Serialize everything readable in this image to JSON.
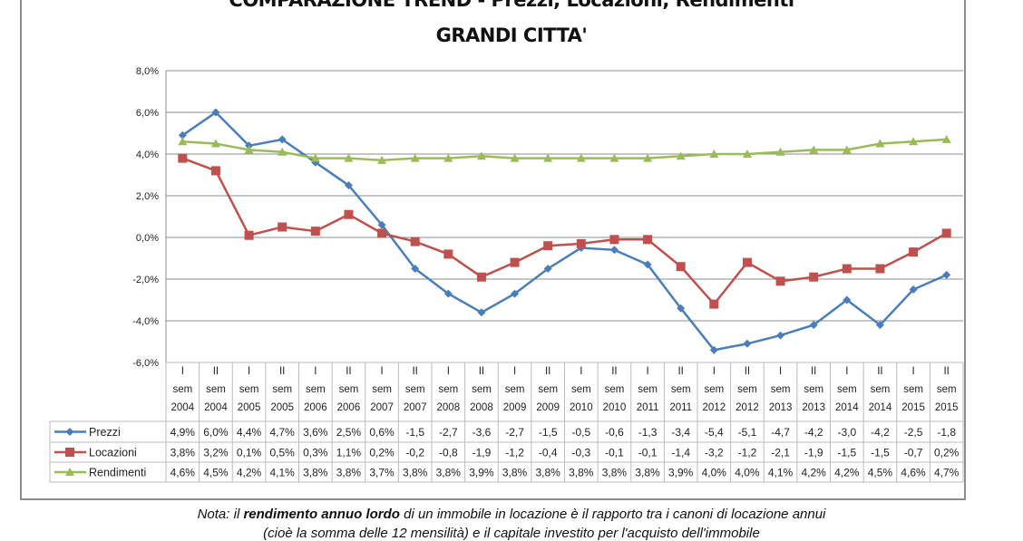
{
  "chart_data": {
    "type": "line",
    "title": "COMPARAZIONE TREND  - Prezzi, Locazioni, Rendimenti",
    "subtitle": "GRANDI CITTA'",
    "categories": [
      [
        "I",
        "sem",
        "2004"
      ],
      [
        "II",
        "sem",
        "2004"
      ],
      [
        "I",
        "sem",
        "2005"
      ],
      [
        "II",
        "sem",
        "2005"
      ],
      [
        "I",
        "sem",
        "2006"
      ],
      [
        "II",
        "sem",
        "2006"
      ],
      [
        "I",
        "sem",
        "2007"
      ],
      [
        "II",
        "sem",
        "2007"
      ],
      [
        "I",
        "sem",
        "2008"
      ],
      [
        "II",
        "sem",
        "2008"
      ],
      [
        "I",
        "sem",
        "2009"
      ],
      [
        "II",
        "sem",
        "2009"
      ],
      [
        "I",
        "sem",
        "2010"
      ],
      [
        "II",
        "sem",
        "2010"
      ],
      [
        "I",
        "sem",
        "2011"
      ],
      [
        "II",
        "sem",
        "2011"
      ],
      [
        "I",
        "sem",
        "2012"
      ],
      [
        "II",
        "sem",
        "2012"
      ],
      [
        "I",
        "sem",
        "2013"
      ],
      [
        "II",
        "sem",
        "2013"
      ],
      [
        "I",
        "sem",
        "2014"
      ],
      [
        "II",
        "sem",
        "2014"
      ],
      [
        "I",
        "sem",
        "2015"
      ],
      [
        "II",
        "sem",
        "2015"
      ]
    ],
    "ylim": [
      -6,
      8
    ],
    "yticks": [
      "-6,0%",
      "-4,0%",
      "-2,0%",
      "0,0%",
      "2,0%",
      "4,0%",
      "6,0%",
      "8,0%"
    ],
    "grid": true,
    "legend": "data-table-left",
    "series": [
      {
        "name": "Prezzi",
        "color": "#4a7ebb",
        "marker": "diamond",
        "values": [
          4.9,
          6.0,
          4.4,
          4.7,
          3.6,
          2.5,
          0.6,
          -1.5,
          -2.7,
          -3.6,
          -2.7,
          -1.5,
          -0.5,
          -0.6,
          -1.3,
          -3.4,
          -5.4,
          -5.1,
          -4.7,
          -4.2,
          -3.0,
          -4.2,
          -2.5,
          -1.8
        ],
        "labels": [
          "4,9%",
          "6,0%",
          "4,4%",
          "4,7%",
          "3,6%",
          "2,5%",
          "0,6%",
          "-1,5",
          "-2,7",
          "-3,6",
          "-2,7",
          "-1,5",
          "-0,5",
          "-0,6",
          "-1,3",
          "-3,4",
          "-5,4",
          "-5,1",
          "-4,7",
          "-4,2",
          "-3,0",
          "-4,2",
          "-2,5",
          "-1,8"
        ]
      },
      {
        "name": "Locazioni",
        "color": "#c0504d",
        "marker": "square",
        "values": [
          3.8,
          3.2,
          0.1,
          0.5,
          0.3,
          1.1,
          0.2,
          -0.2,
          -0.8,
          -1.9,
          -1.2,
          -0.4,
          -0.3,
          -0.1,
          -0.1,
          -1.4,
          -3.2,
          -1.2,
          -2.1,
          -1.9,
          -1.5,
          -1.5,
          -0.7,
          0.2
        ],
        "labels": [
          "3,8%",
          "3,2%",
          "0,1%",
          "0,5%",
          "0,3%",
          "1,1%",
          "0,2%",
          "-0,2",
          "-0,8",
          "-1,9",
          "-1,2",
          "-0,4",
          "-0,3",
          "-0,1",
          "-0,1",
          "-1,4",
          "-3,2",
          "-1,2",
          "-2,1",
          "-1,9",
          "-1,5",
          "-1,5",
          "-0,7",
          "0,2%"
        ]
      },
      {
        "name": "Rendimenti",
        "color": "#9bbb59",
        "marker": "triangle",
        "values": [
          4.6,
          4.5,
          4.2,
          4.1,
          3.8,
          3.8,
          3.7,
          3.8,
          3.8,
          3.9,
          3.8,
          3.8,
          3.8,
          3.8,
          3.8,
          3.9,
          4.0,
          4.0,
          4.1,
          4.2,
          4.2,
          4.5,
          4.6,
          4.7
        ],
        "labels": [
          "4,6%",
          "4,5%",
          "4,2%",
          "4,1%",
          "3,8%",
          "3,8%",
          "3,7%",
          "3,8%",
          "3,8%",
          "3,9%",
          "3,8%",
          "3,8%",
          "3,8%",
          "3,8%",
          "3,8%",
          "3,9%",
          "4,0%",
          "4,0%",
          "4,1%",
          "4,2%",
          "4,2%",
          "4,5%",
          "4,6%",
          "4,7%"
        ]
      }
    ]
  },
  "note": {
    "line1_prefix": "Nota: il ",
    "line1_bold": "rendimento annuo lordo",
    "line1_suffix": " di un immobile in locazione è il rapporto tra i canoni di locazione annui",
    "line2": "(cioè la somma delle 12 mensilità) e il capitale investito per l'acquisto dell'immobile"
  }
}
